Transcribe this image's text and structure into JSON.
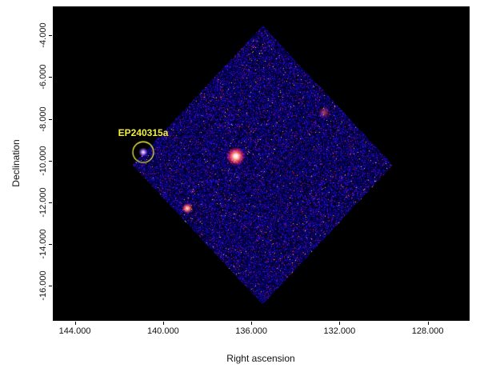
{
  "figure": {
    "background": "#ffffff",
    "plot_background": "#000000"
  },
  "chart_data": {
    "type": "scatter",
    "subtype": "astronomical-sky-image",
    "title": "",
    "xlabel": "Right ascension",
    "ylabel": "Declination",
    "x_tick_labels": [
      "144.000",
      "140.000",
      "136.000",
      "132.000",
      "128.000"
    ],
    "x_tick_values": [
      144.0,
      140.0,
      136.0,
      132.0,
      128.0
    ],
    "y_tick_labels": [
      "-4.000",
      "-6.000",
      "-8.000",
      "-10.000",
      "-12.000",
      "-14.000",
      "-16.000"
    ],
    "y_tick_values": [
      -4.0,
      -6.0,
      -8.0,
      -10.0,
      -12.0,
      -14.0,
      -16.0
    ],
    "xlim": [
      145.0,
      126.1
    ],
    "ylim": [
      -17.7,
      -2.6
    ],
    "x_axis_direction": "ra-decreasing-rightward",
    "grid": false,
    "legend": false,
    "axes_bg": "#000000",
    "fov": {
      "shape": "rotated-square",
      "corners_radec": [
        [
          135.5,
          -3.5
        ],
        [
          129.6,
          -10.2
        ],
        [
          135.5,
          -16.9
        ],
        [
          141.4,
          -10.2
        ]
      ],
      "noise_colormap": "blue-with-red-speckle"
    },
    "sources": [
      {
        "name": "EP240315a",
        "ra": 140.9,
        "dec": -9.6,
        "intensity": "moderate-compact",
        "circled": true
      },
      {
        "name": "bright-central-source",
        "ra": 136.7,
        "dec": -9.8,
        "intensity": "bright",
        "circled": false
      },
      {
        "name": "source-southwest",
        "ra": 138.9,
        "dec": -12.3,
        "intensity": "moderate",
        "circled": false
      },
      {
        "name": "faint-source-northeast",
        "ra": 132.7,
        "dec": -7.7,
        "intensity": "faint",
        "circled": false
      }
    ],
    "annotation": {
      "label": "EP240315a",
      "color": "#f2ef3d",
      "circle_color": "#f2ef3d",
      "ra": 140.9,
      "dec": -9.6,
      "circle_radius_deg": 0.47
    }
  }
}
